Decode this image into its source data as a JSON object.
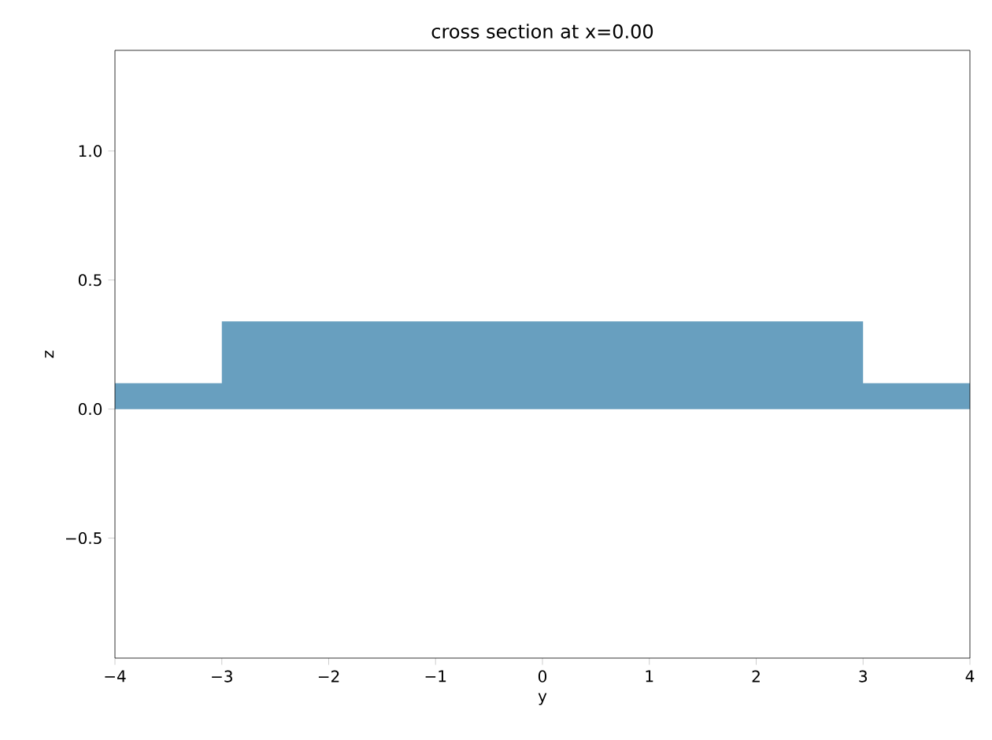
{
  "chart_data": {
    "type": "area",
    "title": "cross section at x=0.00",
    "xlabel": "y",
    "ylabel": "z",
    "x": [
      -4,
      -3,
      -3,
      3,
      3,
      4
    ],
    "values": [
      0.1,
      0.1,
      0.34,
      0.34,
      0.1,
      0.1
    ],
    "color": "#689fbf",
    "xlim": [
      -4,
      4
    ],
    "xticks": [
      {
        "value": -4,
        "label": "−4"
      },
      {
        "value": -3,
        "label": "−3"
      },
      {
        "value": -2,
        "label": "−2"
      },
      {
        "value": -1,
        "label": "−1"
      },
      0,
      1,
      2,
      3,
      4
    ],
    "ylim": [
      -0.965,
      1.39
    ],
    "yticks": [
      {
        "value": -0.5,
        "label": "−0.5"
      },
      {
        "value": 0,
        "label": "0.0"
      },
      {
        "value": 0.5,
        "label": "0.5"
      },
      {
        "value": 1,
        "label": "1.0"
      }
    ],
    "grid": false
  }
}
